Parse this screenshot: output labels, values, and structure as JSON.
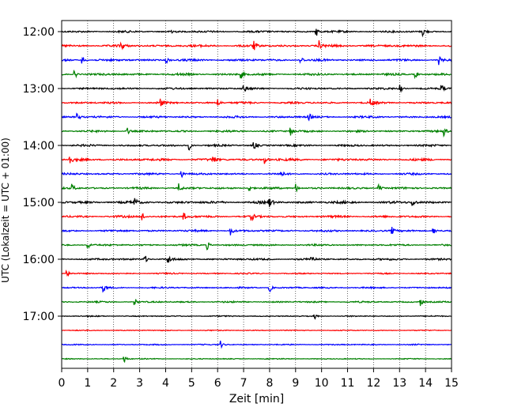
{
  "chart_data": {
    "type": "line",
    "title": "",
    "xlabel": "Zeit  [min]",
    "ylabel": "UTC (Lokalzeit = UTC + 01:00)",
    "xlim": [
      0,
      15
    ],
    "x_ticks": [
      0,
      1,
      2,
      3,
      4,
      5,
      6,
      7,
      8,
      9,
      10,
      11,
      12,
      13,
      14,
      15
    ],
    "y_tick_labels": [
      "12:00",
      "13:00",
      "14:00",
      "15:00",
      "16:00",
      "17:00"
    ],
    "grid": "vertical dotted",
    "line_colors": [
      "#000000",
      "#ff0000",
      "#0000ff",
      "#008000"
    ],
    "traces": [
      {
        "start": "12:00",
        "color": "#000000",
        "amplitude": 0.5,
        "events": [
          4.2,
          9.8,
          13.9
        ]
      },
      {
        "start": "12:15",
        "color": "#ff0000",
        "amplitude": 0.6,
        "events": [
          2.3,
          7.4,
          9.9
        ]
      },
      {
        "start": "12:30",
        "color": "#0000ff",
        "amplitude": 0.55,
        "events": [
          0.8,
          4.0,
          9.2,
          14.5
        ]
      },
      {
        "start": "12:45",
        "color": "#008000",
        "amplitude": 0.55,
        "events": [
          0.5,
          6.9,
          13.6
        ]
      },
      {
        "start": "13:00",
        "color": "#000000",
        "amplitude": 0.5,
        "events": [
          7.0,
          13.0,
          14.6
        ]
      },
      {
        "start": "13:15",
        "color": "#ff0000",
        "amplitude": 0.5,
        "events": [
          3.8,
          6.0,
          11.9
        ]
      },
      {
        "start": "13:30",
        "color": "#0000ff",
        "amplitude": 0.5,
        "events": [
          0.6,
          9.5
        ]
      },
      {
        "start": "13:45",
        "color": "#008000",
        "amplitude": 0.5,
        "events": [
          2.5,
          8.8,
          14.7
        ]
      },
      {
        "start": "14:00",
        "color": "#000000",
        "amplitude": 0.5,
        "events": [
          4.9,
          7.4
        ]
      },
      {
        "start": "14:15",
        "color": "#ff0000",
        "amplitude": 0.6,
        "events": [
          0.3,
          5.8,
          7.8
        ]
      },
      {
        "start": "14:30",
        "color": "#0000ff",
        "amplitude": 0.5,
        "events": [
          4.6,
          8.4
        ]
      },
      {
        "start": "14:45",
        "color": "#008000",
        "amplitude": 0.5,
        "events": [
          0.4,
          4.5,
          7.2,
          9.0,
          12.2
        ]
      },
      {
        "start": "15:00",
        "color": "#000000",
        "amplitude": 0.65,
        "events": [
          2.8,
          8.0,
          13.5
        ]
      },
      {
        "start": "15:15",
        "color": "#ff0000",
        "amplitude": 0.55,
        "events": [
          3.1,
          4.7,
          7.3
        ]
      },
      {
        "start": "15:30",
        "color": "#0000ff",
        "amplitude": 0.5,
        "events": [
          6.5,
          12.7,
          14.3
        ]
      },
      {
        "start": "15:45",
        "color": "#008000",
        "amplitude": 0.45,
        "events": [
          1.0,
          5.6
        ]
      },
      {
        "start": "16:00",
        "color": "#000000",
        "amplitude": 0.5,
        "events": [
          3.2,
          4.1,
          9.6
        ]
      },
      {
        "start": "16:15",
        "color": "#ff0000",
        "amplitude": 0.35,
        "events": [
          0.2
        ]
      },
      {
        "start": "16:30",
        "color": "#0000ff",
        "amplitude": 0.4,
        "events": [
          1.6,
          8.0
        ]
      },
      {
        "start": "16:45",
        "color": "#008000",
        "amplitude": 0.4,
        "events": [
          2.8,
          13.8
        ]
      },
      {
        "start": "17:00",
        "color": "#000000",
        "amplitude": 0.3,
        "events": [
          9.7
        ]
      },
      {
        "start": "17:15",
        "color": "#ff0000",
        "amplitude": 0.25,
        "events": []
      },
      {
        "start": "17:30",
        "color": "#0000ff",
        "amplitude": 0.3,
        "events": [
          6.1
        ]
      },
      {
        "start": "17:45",
        "color": "#008000",
        "amplitude": 0.25,
        "events": [
          2.4
        ]
      }
    ]
  }
}
